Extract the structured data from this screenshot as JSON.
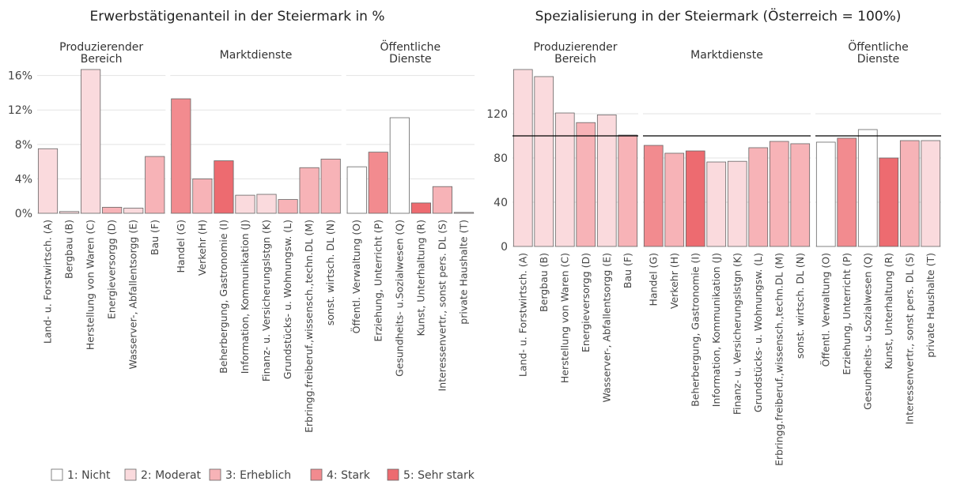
{
  "chart_data": [
    {
      "type": "bar",
      "title": "Erwerbstätigenanteil in der Steiermark in %",
      "ylim": [
        0,
        16.7
      ],
      "yticks": [
        {
          "value": 0,
          "label": "0%"
        },
        {
          "value": 4,
          "label": "4%"
        },
        {
          "value": 8,
          "label": "8%"
        },
        {
          "value": 12,
          "label": "12%"
        },
        {
          "value": 16,
          "label": "16%"
        }
      ],
      "grid": true,
      "facets": [
        {
          "label": [
            "Produzierender",
            "Bereich"
          ],
          "categories": [
            "Land- u. Forstwirtsch. (A)",
            "Bergbau (B)",
            "Herstellung von Waren (C)",
            "Energieversorgg (D)",
            "Wasserver-, Abfallentsorgg (E)",
            "Bau (F)"
          ],
          "values": [
            7.5,
            0.2,
            16.7,
            0.7,
            0.6,
            6.6
          ],
          "colors": [
            "#fadadd",
            "#fadadd",
            "#fadadd",
            "#f7b3b7",
            "#fadadd",
            "#f7b3b7"
          ]
        },
        {
          "label": [
            "Marktdienste"
          ],
          "categories": [
            "Handel (G)",
            "Verkehr (H)",
            "Beherbergung, Gastronomie (I)",
            "Information, Kommunikation (J)",
            "Finanz- u. Versicherungslstgn (K)",
            "Grundstücks- u. Wohnungsw. (L)",
            "Erbringg.freiberuf.,wissensch.,techn.DL (M)",
            "sonst. wirtsch. DL (N)"
          ],
          "values": [
            13.3,
            4.0,
            6.1,
            2.1,
            2.2,
            1.6,
            5.3,
            6.3
          ],
          "colors": [
            "#f28b8f",
            "#f7b3b7",
            "#ed6b70",
            "#fadadd",
            "#fadadd",
            "#f7b3b7",
            "#f7b3b7",
            "#f7b3b7"
          ]
        },
        {
          "label": [
            "Öffentliche",
            "Dienste"
          ],
          "categories": [
            "Öffentl. Verwaltung (O)",
            "Erziehung, Unterricht (P)",
            "Gesundheits- u.Sozialwesen (Q)",
            "Kunst, Unterhaltung (R)",
            "Interessenvertr., sonst pers. DL (S)",
            "private Haushalte (T)"
          ],
          "values": [
            5.4,
            7.1,
            11.1,
            1.2,
            3.1,
            0.1
          ],
          "colors": [
            "#ffffff",
            "#f28b8f",
            "#ffffff",
            "#ed6b70",
            "#f7b3b7",
            "#fadadd"
          ]
        }
      ]
    },
    {
      "type": "bar",
      "title": "Spezialisierung in der Steiermark (Österreich = 100%)",
      "ylim": [
        0,
        160
      ],
      "yticks": [
        0,
        40,
        80,
        120
      ],
      "grid": true,
      "hline": 100,
      "facets": [
        {
          "label": [
            "Produzierender",
            "Bereich"
          ],
          "categories": [
            "Land- u. Forstwirtsch. (A)",
            "Bergbau (B)",
            "Herstellung von Waren (C)",
            "Energieversorgg (D)",
            "Wasserver-, Abfallentsorgg (E)",
            "Bau (F)"
          ],
          "values": [
            160,
            153.6,
            120.7,
            112,
            119,
            100.7
          ],
          "colors": [
            "#fadadd",
            "#fadadd",
            "#fadadd",
            "#f7b3b7",
            "#fadadd",
            "#f7b3b7"
          ]
        },
        {
          "label": [
            "Marktdienste"
          ],
          "categories": [
            "Handel (G)",
            "Verkehr (H)",
            "Beherbergung, Gastronomie (I)",
            "Information, Kommunikation (J)",
            "Finanz- u. Versicherungslstgn (K)",
            "Grundstücks- u. Wohnungsw. (L)",
            "Erbringg.freiberuf.,wissensch.,techn.DL (M)",
            "sonst. wirtsch. DL (N)"
          ],
          "values": [
            91.4,
            84.3,
            86.4,
            76.4,
            77,
            89.3,
            95,
            92.9
          ],
          "colors": [
            "#f28b8f",
            "#f7b3b7",
            "#ed6b70",
            "#fadadd",
            "#fadadd",
            "#f7b3b7",
            "#f7b3b7",
            "#f7b3b7"
          ]
        },
        {
          "label": [
            "Öffentliche",
            "Dienste"
          ],
          "categories": [
            "Öffentl. Verwaltung (O)",
            "Erziehung, Unterricht (P)",
            "Gesundheits- u.Sozialwesen (Q)",
            "Kunst, Unterhaltung (R)",
            "Interessenvertr., sonst pers. DL (S)",
            "private Haushalte (T)"
          ],
          "values": [
            94.3,
            97.9,
            105.7,
            80,
            95.7,
            95.7
          ],
          "colors": [
            "#ffffff",
            "#f28b8f",
            "#ffffff",
            "#ed6b70",
            "#f7b3b7",
            "#fadadd"
          ]
        }
      ]
    }
  ],
  "legend": [
    {
      "label": "1: Nicht",
      "color": "#ffffff"
    },
    {
      "label": "2: Moderat",
      "color": "#fadadd"
    },
    {
      "label": "3: Erheblich",
      "color": "#f7b3b7"
    },
    {
      "label": "4: Stark",
      "color": "#f28b8f"
    },
    {
      "label": "5: Sehr stark",
      "color": "#ed6b70"
    }
  ]
}
